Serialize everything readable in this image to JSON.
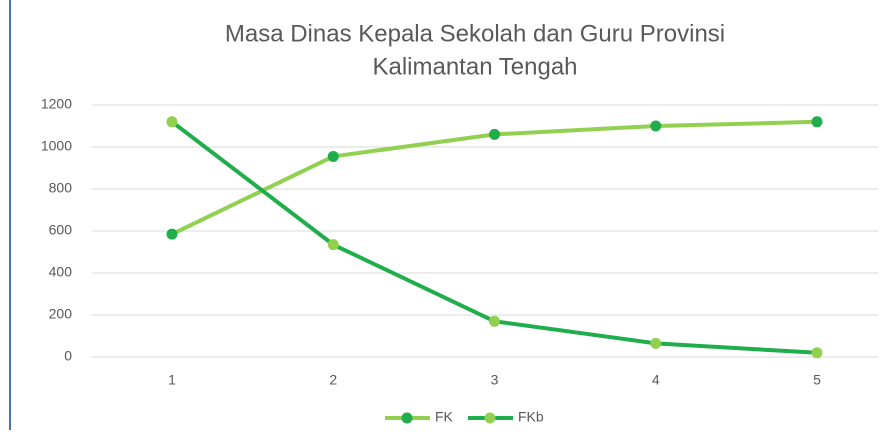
{
  "chart_data": {
    "type": "line",
    "title": [
      "Masa Dinas Kepala Sekolah dan Guru Provinsi",
      "Kalimantan Tengah"
    ],
    "categories": [
      "1",
      "2",
      "3",
      "4",
      "5"
    ],
    "series": [
      {
        "name": "FK",
        "color": "#92d050",
        "marker_color": "#1fae4b",
        "values": [
          585,
          955,
          1060,
          1100,
          1120
        ]
      },
      {
        "name": "FKb",
        "color": "#1fae4b",
        "marker_color": "#92d050",
        "values": [
          1120,
          535,
          170,
          65,
          20
        ]
      }
    ],
    "ylim": [
      0,
      1200
    ],
    "yticks": [
      0,
      200,
      400,
      600,
      800,
      1000,
      1200
    ],
    "grid": true,
    "legend": "bottom"
  }
}
